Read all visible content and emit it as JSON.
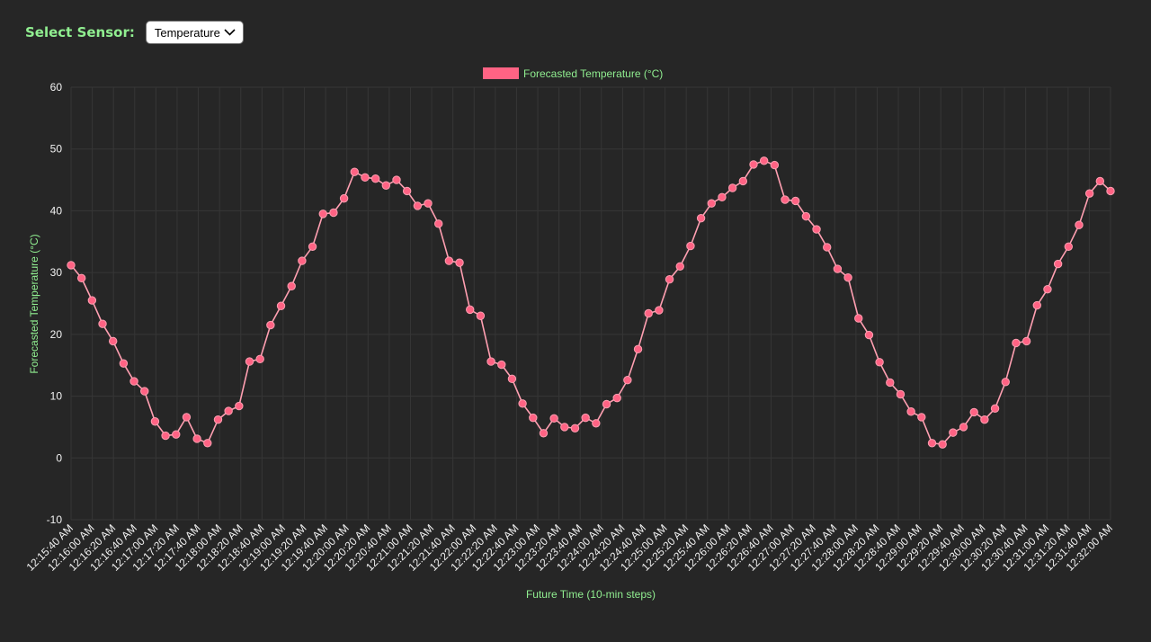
{
  "controls": {
    "sensor_label": "Select Sensor:",
    "selected_sensor": "Temperature"
  },
  "colors": {
    "series": "#ff6384",
    "series_line": "#ff9fb1",
    "text_accent": "#90ee90",
    "grid": "#363636"
  },
  "chart_data": {
    "type": "line",
    "legend": "Forecasted Temperature (°C)",
    "legend_position": "top",
    "xlabel": "Future Time (10-min steps)",
    "ylabel": "Forecasted Temperature (°C)",
    "ylim": [
      -10,
      60
    ],
    "yticks": [
      -10,
      0,
      10,
      20,
      30,
      40,
      50,
      60
    ],
    "grid": true,
    "xtick_labels": [
      "12:15:40 AM",
      "12:16:00 AM",
      "12:16:20 AM",
      "12:16:40 AM",
      "12:17:00 AM",
      "12:17:20 AM",
      "12:17:40 AM",
      "12:18:00 AM",
      "12:18:20 AM",
      "12:18:40 AM",
      "12:19:00 AM",
      "12:19:20 AM",
      "12:19:40 AM",
      "12:20:00 AM",
      "12:20:20 AM",
      "12:20:40 AM",
      "12:21:00 AM",
      "12:21:20 AM",
      "12:21:40 AM",
      "12:22:00 AM",
      "12:22:20 AM",
      "12:22:40 AM",
      "12:23:00 AM",
      "12:23:20 AM",
      "12:23:40 AM",
      "12:24:00 AM",
      "12:24:20 AM",
      "12:24:40 AM",
      "12:25:00 AM",
      "12:25:20 AM",
      "12:25:40 AM",
      "12:26:00 AM",
      "12:26:20 AM",
      "12:26:40 AM",
      "12:27:00 AM",
      "12:27:20 AM",
      "12:27:40 AM",
      "12:28:00 AM",
      "12:28:20 AM",
      "12:28:40 AM",
      "12:29:00 AM",
      "12:29:20 AM",
      "12:29:40 AM",
      "12:30:00 AM",
      "12:30:20 AM",
      "12:30:40 AM",
      "12:31:00 AM",
      "12:31:20 AM",
      "12:31:40 AM",
      "12:32:00 AM"
    ],
    "series": [
      {
        "name": "Forecasted Temperature (°C)",
        "values": [
          31.2,
          29.1,
          25.5,
          21.7,
          18.9,
          15.3,
          12.4,
          10.8,
          5.9,
          3.6,
          3.8,
          6.6,
          3.1,
          2.4,
          6.2,
          7.6,
          8.4,
          15.6,
          16.0,
          21.5,
          24.6,
          27.8,
          31.9,
          34.2,
          39.5,
          39.7,
          42.0,
          46.3,
          45.4,
          45.2,
          44.1,
          45.0,
          43.2,
          40.8,
          41.2,
          37.9,
          31.9,
          31.6,
          24.0,
          23.0,
          15.6,
          15.1,
          12.8,
          8.8,
          6.5,
          4.0,
          6.4,
          5.0,
          4.8,
          6.5,
          5.6,
          8.7,
          9.7,
          12.6,
          17.6,
          23.4,
          23.9,
          28.9,
          31.0,
          34.3,
          38.8,
          41.2,
          42.2,
          43.7,
          44.8,
          47.5,
          48.1,
          47.4,
          41.8,
          41.6,
          39.1,
          37.0,
          34.1,
          30.6,
          29.2,
          22.6,
          19.9,
          15.5,
          12.2,
          10.3,
          7.5,
          6.6,
          2.4,
          2.2,
          4.1,
          5.0,
          7.4,
          6.2,
          8.0,
          12.3,
          18.6,
          18.9,
          24.7,
          27.3,
          31.4,
          34.2,
          37.7,
          42.8,
          44.8,
          43.2
        ]
      }
    ]
  }
}
